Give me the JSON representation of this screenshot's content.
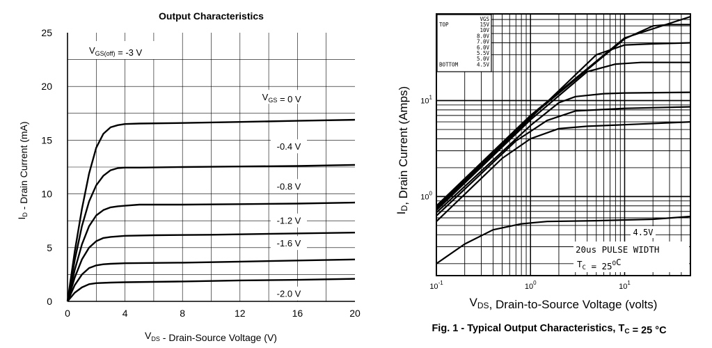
{
  "chart_data": [
    {
      "type": "line",
      "title": "Output Characteristics",
      "xlabel": {
        "main": "V",
        "sub": "DS",
        "rest": " - Drain-Source Voltage (V)"
      },
      "ylabel": {
        "main": "I",
        "sub": "D",
        "rest": " - Drain Current (mA)"
      },
      "xlim": [
        0,
        20
      ],
      "ylim": [
        0,
        25
      ],
      "xticks": [
        0,
        4,
        8,
        12,
        16,
        20
      ],
      "yticks": [
        0,
        5,
        10,
        15,
        20,
        25
      ],
      "grid": true,
      "note": {
        "main": "V",
        "sub": "GS(off)",
        "rest": " = -3 V"
      },
      "series": [
        {
          "name": "V_GS = 0 V",
          "label_main": "V",
          "label_sub": "GS",
          "label_rest": " = 0 V",
          "label_at": [
            14.9,
            18.9
          ],
          "x": [
            0,
            0.5,
            1,
            1.5,
            2,
            2.5,
            3,
            3.5,
            4,
            5,
            8,
            12,
            16,
            20
          ],
          "y": [
            0,
            4.6,
            8.6,
            11.9,
            14.3,
            15.6,
            16.2,
            16.4,
            16.5,
            16.55,
            16.6,
            16.7,
            16.8,
            16.9
          ]
        },
        {
          "name": "-0.4 V",
          "label_main": "-0.4 V",
          "label_at": [
            15.4,
            14.3
          ],
          "x": [
            0,
            0.5,
            1,
            1.5,
            2,
            2.5,
            3,
            3.5,
            4,
            5,
            8,
            12,
            16,
            20
          ],
          "y": [
            0,
            3.8,
            7,
            9.3,
            10.8,
            11.7,
            12.2,
            12.4,
            12.45,
            12.45,
            12.5,
            12.55,
            12.6,
            12.7
          ]
        },
        {
          "name": "-0.8 V",
          "label_main": "-0.8 V",
          "label_at": [
            15.4,
            10.6
          ],
          "x": [
            0,
            0.5,
            1,
            1.5,
            2,
            2.5,
            3,
            3.5,
            4,
            5,
            6,
            8,
            12,
            16,
            20
          ],
          "y": [
            0,
            2.9,
            5.3,
            7,
            8,
            8.5,
            8.75,
            8.85,
            8.9,
            9.0,
            9.0,
            9.0,
            9.05,
            9.1,
            9.2
          ]
        },
        {
          "name": "-1.2 V",
          "label_main": "-1.2 V",
          "label_at": [
            15.4,
            7.4
          ],
          "x": [
            0,
            0.5,
            1,
            1.5,
            2,
            2.5,
            3,
            4,
            6,
            10,
            15,
            20
          ],
          "y": [
            0,
            2.2,
            3.9,
            5.0,
            5.6,
            5.9,
            6.0,
            6.1,
            6.15,
            6.2,
            6.3,
            6.4
          ]
        },
        {
          "name": "-1.6 V",
          "label_main": "-1.6 V",
          "label_at": [
            15.4,
            5.3
          ],
          "x": [
            0,
            0.5,
            1,
            1.5,
            2,
            2.5,
            3,
            4,
            8,
            12,
            16,
            20
          ],
          "y": [
            0,
            1.5,
            2.5,
            3.1,
            3.35,
            3.45,
            3.5,
            3.55,
            3.6,
            3.7,
            3.8,
            3.9
          ]
        },
        {
          "name": "-2.0 V",
          "label_main": "-2.0 V",
          "label_at": [
            15.4,
            0.6
          ],
          "x": [
            0,
            0.5,
            1,
            1.5,
            2,
            3,
            4,
            8,
            12,
            16,
            20
          ],
          "y": [
            0,
            0.8,
            1.3,
            1.6,
            1.7,
            1.75,
            1.78,
            1.85,
            1.95,
            2.0,
            2.1
          ]
        }
      ]
    },
    {
      "type": "line",
      "title": "",
      "caption": {
        "main": "Fig. 1 - Typical Output Characteristics, T",
        "sub": "C",
        "rest": " = 25 °C"
      },
      "xlabel": {
        "main": "V",
        "sub": "DS",
        "rest": ", Drain-to-Source Voltage (volts)"
      },
      "ylabel": {
        "main": "I",
        "sub": "D",
        "rest": ", Drain Current (Amps)"
      },
      "xscale": "log",
      "yscale": "log",
      "xlim": [
        0.1,
        50
      ],
      "ylim": [
        0.15,
        80
      ],
      "xticks": [
        {
          "v": 0.1,
          "b": "10",
          "e": "-1"
        },
        {
          "v": 1,
          "b": "10",
          "e": "0"
        },
        {
          "v": 10,
          "b": "10",
          "e": "1"
        }
      ],
      "yticks": [
        {
          "v": 1,
          "b": "10",
          "e": "0"
        },
        {
          "v": 10,
          "b": "10",
          "e": "1"
        }
      ],
      "grid": true,
      "legend_box": {
        "header": "VGS",
        "top_label": "TOP",
        "bottom_label": "BOTTOM",
        "entries": [
          "15V",
          "10V",
          "8.0V",
          "7.0V",
          "6.0V",
          "5.5V",
          "5.0V",
          "4.5V"
        ]
      },
      "annotations": {
        "line_label": "4.5V",
        "pulse": "20us PULSE WIDTH",
        "temp_main": "T",
        "temp_sub": "C",
        "temp_rest": " = 25",
        "temp_sup": "O",
        "temp_unit": "C"
      },
      "series": [
        {
          "name": "15V",
          "x": [
            0.1,
            1,
            10,
            50
          ],
          "y": [
            0.8,
            7,
            45,
            75
          ]
        },
        {
          "name": "10V",
          "x": [
            0.1,
            1,
            10,
            20,
            30,
            50
          ],
          "y": [
            0.78,
            6.8,
            44,
            60,
            62,
            62
          ]
        },
        {
          "name": "8.0V",
          "x": [
            0.1,
            1,
            5,
            10,
            20,
            50
          ],
          "y": [
            0.75,
            6.6,
            30,
            38,
            39,
            40
          ]
        },
        {
          "name": "7.0V",
          "x": [
            0.1,
            1,
            4,
            8,
            15,
            50
          ],
          "y": [
            0.72,
            6.3,
            20,
            24,
            25,
            25
          ]
        },
        {
          "name": "6.0V",
          "x": [
            0.1,
            1,
            2,
            3,
            6,
            10,
            50
          ],
          "y": [
            0.68,
            5.5,
            9.5,
            11,
            11.8,
            12,
            12.2
          ]
        },
        {
          "name": "5.5V",
          "x": [
            0.1,
            0.7,
            1.5,
            3,
            10,
            50
          ],
          "y": [
            0.63,
            3.8,
            6.2,
            7.8,
            8.3,
            8.6
          ]
        },
        {
          "name": "5.0V",
          "x": [
            0.1,
            0.5,
            1,
            2,
            4,
            10,
            50
          ],
          "y": [
            0.55,
            2.5,
            4.0,
            5.1,
            5.4,
            5.6,
            6.0
          ]
        },
        {
          "name": "4.5V",
          "x": [
            0.1,
            0.2,
            0.4,
            0.8,
            1.5,
            5,
            20,
            50
          ],
          "y": [
            0.2,
            0.32,
            0.45,
            0.52,
            0.55,
            0.56,
            0.58,
            0.62
          ]
        }
      ]
    }
  ]
}
